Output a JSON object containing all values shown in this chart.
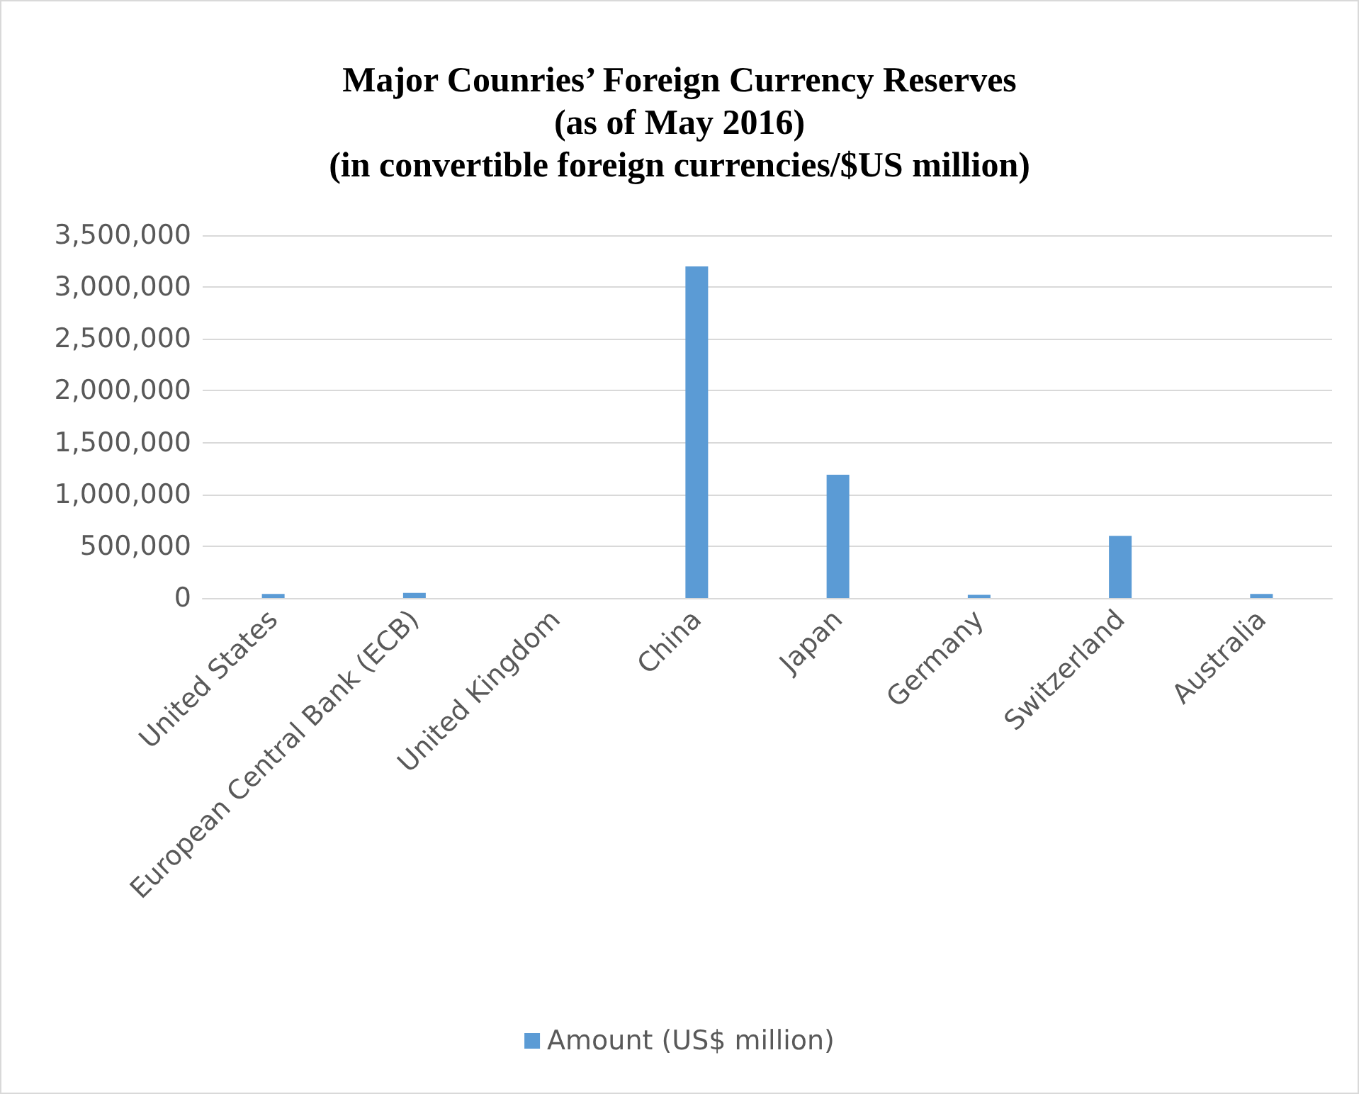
{
  "chart_data": {
    "type": "bar",
    "title": "Major Counries’ Foreign Currency Reserves\n(as of May 2016)\n(in convertible foreign currencies/$US million)",
    "categories": [
      "United States",
      "European Central Bank (ECB)",
      "United Kingdom",
      "China",
      "Japan",
      "Germany",
      "Switzerland",
      "Australia"
    ],
    "series": [
      {
        "name": "Amount (US$ million)",
        "color": "#5b9bd5",
        "values": [
          40000,
          50000,
          0,
          3200000,
          1190000,
          30000,
          600000,
          40000
        ]
      }
    ],
    "ylim": [
      0,
      3500000
    ],
    "yticks": [
      0,
      {
        "value": 500000,
        "label": "500,000"
      },
      {
        "value": 1000000,
        "label": "1,000,000"
      },
      {
        "value": 1500000,
        "label": "1,500,000"
      },
      {
        "value": 2000000,
        "label": "2,000,000"
      },
      {
        "value": 2500000,
        "label": "2,500,000"
      },
      {
        "value": 3000000,
        "label": "3,000,000"
      },
      {
        "value": 3500000,
        "label": "3,500,000"
      }
    ],
    "grid": "y",
    "legend": "bottom"
  }
}
